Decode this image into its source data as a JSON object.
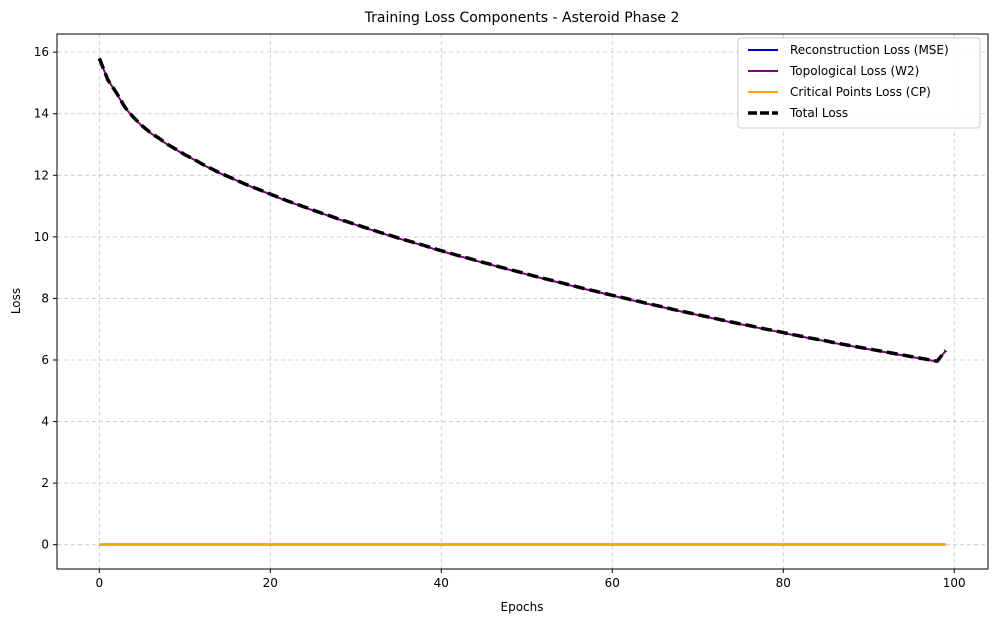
{
  "chart_data": {
    "type": "line",
    "title": "Training Loss Components - Asteroid Phase 2",
    "xlabel": "Epochs",
    "ylabel": "Loss",
    "xlim": [
      -4.95,
      103.95
    ],
    "ylim": [
      -0.79,
      16.59
    ],
    "xticks": [
      0,
      20,
      40,
      60,
      80,
      100
    ],
    "yticks": [
      0,
      2,
      4,
      6,
      8,
      10,
      12,
      14,
      16
    ],
    "grid": true,
    "legend_position": "upper right",
    "x": [
      0,
      1,
      2,
      3,
      4,
      5,
      6,
      7,
      8,
      9,
      10,
      11,
      12,
      13,
      14,
      15,
      16,
      17,
      18,
      19,
      20,
      21,
      22,
      23,
      24,
      25,
      26,
      27,
      28,
      29,
      30,
      31,
      32,
      33,
      34,
      35,
      36,
      37,
      38,
      39,
      40,
      41,
      42,
      43,
      44,
      45,
      46,
      47,
      48,
      49,
      50,
      51,
      52,
      53,
      54,
      55,
      56,
      57,
      58,
      59,
      60,
      61,
      62,
      63,
      64,
      65,
      66,
      67,
      68,
      69,
      70,
      71,
      72,
      73,
      74,
      75,
      76,
      77,
      78,
      79,
      80,
      81,
      82,
      83,
      84,
      85,
      86,
      87,
      88,
      89,
      90,
      91,
      92,
      93,
      94,
      95,
      96,
      97,
      98,
      99
    ],
    "series": [
      {
        "name": "Reconstruction Loss (MSE)",
        "color": "#0000cc",
        "style": "solid",
        "values": [
          0.01,
          0.01,
          0.01,
          0.01,
          0.01,
          0.01,
          0.01,
          0.01,
          0.01,
          0.01,
          0.01,
          0.01,
          0.01,
          0.01,
          0.01,
          0.01,
          0.01,
          0.01,
          0.01,
          0.01,
          0.01,
          0.01,
          0.01,
          0.01,
          0.01,
          0.01,
          0.01,
          0.01,
          0.01,
          0.01,
          0.01,
          0.01,
          0.01,
          0.01,
          0.01,
          0.01,
          0.01,
          0.01,
          0.01,
          0.01,
          0.01,
          0.01,
          0.01,
          0.01,
          0.01,
          0.01,
          0.01,
          0.01,
          0.01,
          0.01,
          0.01,
          0.01,
          0.01,
          0.01,
          0.01,
          0.01,
          0.01,
          0.01,
          0.01,
          0.01,
          0.01,
          0.01,
          0.01,
          0.01,
          0.01,
          0.01,
          0.01,
          0.01,
          0.01,
          0.01,
          0.01,
          0.01,
          0.01,
          0.01,
          0.01,
          0.01,
          0.01,
          0.01,
          0.01,
          0.01,
          0.01,
          0.01,
          0.01,
          0.01,
          0.01,
          0.01,
          0.01,
          0.01,
          0.01,
          0.01,
          0.01,
          0.01,
          0.01,
          0.01,
          0.01,
          0.01,
          0.01,
          0.01,
          0.01,
          0.01
        ]
      },
      {
        "name": "Topological Loss (W2)",
        "color": "#800080",
        "style": "solid",
        "values": [
          15.79,
          15.1,
          14.67,
          14.2,
          13.87,
          13.6,
          13.37,
          13.19,
          12.99,
          12.83,
          12.66,
          12.52,
          12.36,
          12.22,
          12.08,
          11.96,
          11.84,
          11.71,
          11.6,
          11.49,
          11.38,
          11.27,
          11.16,
          11.06,
          10.96,
          10.86,
          10.76,
          10.67,
          10.57,
          10.48,
          10.39,
          10.3,
          10.21,
          10.12,
          10.04,
          9.95,
          9.87,
          9.79,
          9.71,
          9.62,
          9.54,
          9.46,
          9.38,
          9.31,
          9.23,
          9.15,
          9.08,
          9.0,
          8.93,
          8.86,
          8.78,
          8.71,
          8.64,
          8.57,
          8.5,
          8.43,
          8.36,
          8.29,
          8.23,
          8.16,
          8.09,
          8.03,
          7.96,
          7.9,
          7.83,
          7.77,
          7.71,
          7.64,
          7.58,
          7.52,
          7.46,
          7.4,
          7.34,
          7.28,
          7.22,
          7.16,
          7.11,
          7.05,
          6.99,
          6.94,
          6.88,
          6.82,
          6.77,
          6.71,
          6.66,
          6.61,
          6.55,
          6.5,
          6.45,
          6.4,
          6.35,
          6.3,
          6.25,
          6.2,
          6.15,
          6.1,
          6.05,
          6.0,
          5.95,
          6.3
        ]
      },
      {
        "name": "Critical Points Loss (CP)",
        "color": "#ffa500",
        "style": "solid",
        "values": [
          0.02,
          0.02,
          0.02,
          0.02,
          0.02,
          0.02,
          0.02,
          0.02,
          0.02,
          0.02,
          0.02,
          0.02,
          0.02,
          0.02,
          0.02,
          0.02,
          0.02,
          0.02,
          0.02,
          0.02,
          0.02,
          0.02,
          0.02,
          0.02,
          0.02,
          0.02,
          0.02,
          0.02,
          0.02,
          0.02,
          0.02,
          0.02,
          0.02,
          0.02,
          0.02,
          0.02,
          0.02,
          0.02,
          0.02,
          0.02,
          0.02,
          0.02,
          0.02,
          0.02,
          0.02,
          0.02,
          0.02,
          0.02,
          0.02,
          0.02,
          0.02,
          0.02,
          0.02,
          0.02,
          0.02,
          0.02,
          0.02,
          0.02,
          0.02,
          0.02,
          0.02,
          0.02,
          0.02,
          0.02,
          0.02,
          0.02,
          0.02,
          0.02,
          0.02,
          0.02,
          0.02,
          0.02,
          0.02,
          0.02,
          0.02,
          0.02,
          0.02,
          0.02,
          0.02,
          0.02,
          0.02,
          0.02,
          0.02,
          0.02,
          0.02,
          0.02,
          0.02,
          0.02,
          0.02,
          0.02,
          0.02,
          0.02,
          0.02,
          0.02,
          0.02,
          0.02,
          0.02,
          0.02,
          0.02,
          0.02
        ]
      },
      {
        "name": "Total Loss",
        "color": "#000000",
        "style": "dashed",
        "values": [
          15.8,
          15.1,
          14.68,
          14.21,
          13.88,
          13.61,
          13.38,
          13.2,
          13.0,
          12.84,
          12.67,
          12.53,
          12.37,
          12.23,
          12.09,
          11.97,
          11.85,
          11.72,
          11.61,
          11.5,
          11.39,
          11.28,
          11.17,
          11.07,
          10.97,
          10.87,
          10.77,
          10.68,
          10.58,
          10.49,
          10.4,
          10.31,
          10.22,
          10.13,
          10.05,
          9.96,
          9.88,
          9.8,
          9.72,
          9.63,
          9.55,
          9.47,
          9.39,
          9.32,
          9.24,
          9.16,
          9.09,
          9.01,
          8.94,
          8.87,
          8.79,
          8.72,
          8.65,
          8.58,
          8.51,
          8.44,
          8.37,
          8.3,
          8.24,
          8.17,
          8.1,
          8.04,
          7.97,
          7.91,
          7.84,
          7.78,
          7.72,
          7.65,
          7.59,
          7.53,
          7.47,
          7.41,
          7.35,
          7.29,
          7.23,
          7.17,
          7.12,
          7.06,
          7.0,
          6.95,
          6.89,
          6.83,
          6.78,
          6.72,
          6.67,
          6.62,
          6.56,
          6.51,
          6.46,
          6.41,
          6.36,
          6.31,
          6.26,
          6.21,
          6.16,
          6.11,
          6.06,
          6.01,
          5.96,
          6.31
        ]
      }
    ]
  }
}
